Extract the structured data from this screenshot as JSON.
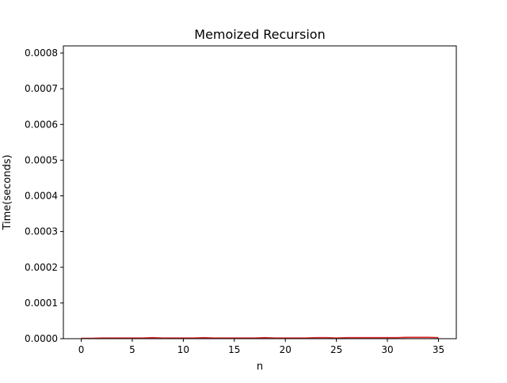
{
  "chart_data": {
    "type": "line",
    "title": "Memoized Recursion",
    "xlabel": "n",
    "ylabel": "Time(seconds)",
    "xlim": [
      -1.75,
      36.75
    ],
    "ylim": [
      0,
      0.00082
    ],
    "x_ticks": [
      0,
      5,
      10,
      15,
      20,
      25,
      30,
      35
    ],
    "x_tick_labels": [
      "0",
      "5",
      "10",
      "15",
      "20",
      "25",
      "30",
      "35"
    ],
    "y_ticks": [
      0,
      0.0001,
      0.0002,
      0.0003,
      0.0004,
      0.0005,
      0.0006,
      0.0007,
      0.0008
    ],
    "y_tick_labels": [
      "0.0000",
      "0.0001",
      "0.0002",
      "0.0003",
      "0.0004",
      "0.0005",
      "0.0006",
      "0.0007",
      "0.0008"
    ],
    "grid": false,
    "series": [
      {
        "color": "#d62728",
        "x": [
          0,
          1,
          2,
          3,
          4,
          5,
          6,
          7,
          8,
          9,
          10,
          11,
          12,
          13,
          14,
          15,
          16,
          17,
          18,
          19,
          20,
          21,
          22,
          23,
          24,
          25,
          26,
          27,
          28,
          29,
          30,
          31,
          32,
          33,
          34,
          35
        ],
        "values": [
          1e-06,
          1e-06,
          2e-06,
          2e-06,
          2e-06,
          2e-06,
          2e-06,
          3e-06,
          2e-06,
          2e-06,
          2e-06,
          2e-06,
          3e-06,
          2e-06,
          2e-06,
          2e-06,
          2e-06,
          2e-06,
          3e-06,
          2e-06,
          2e-06,
          2e-06,
          2e-06,
          3e-06,
          3e-06,
          2e-06,
          3e-06,
          3e-06,
          3e-06,
          3e-06,
          3e-06,
          3e-06,
          4e-06,
          4e-06,
          4e-06,
          3e-06
        ]
      }
    ]
  }
}
